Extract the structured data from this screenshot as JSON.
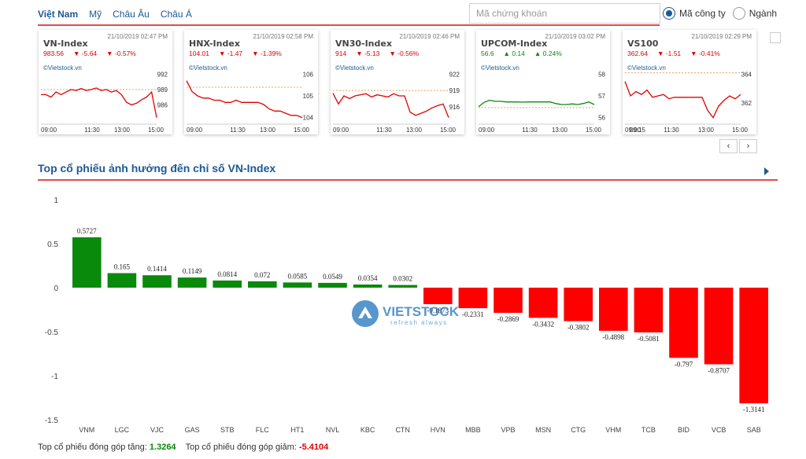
{
  "nav": {
    "tabs": [
      {
        "label": "Việt Nam",
        "active": true
      },
      {
        "label": "Mỹ",
        "active": false
      },
      {
        "label": "Châu Âu",
        "active": false
      },
      {
        "label": "Châu Á",
        "active": false
      }
    ]
  },
  "search": {
    "placeholder": "Mã chứng khoán"
  },
  "filter": {
    "option1": "Mã công ty",
    "option2": "Ngành"
  },
  "cards": [
    {
      "name": "VN-Index",
      "time": "21/10/2019 02:47 PM",
      "value": "983.56",
      "change": "▼ -5.64",
      "pct": "▼ -0.57%",
      "trend": "neg",
      "source": "©Vietstock.vn",
      "yticks": [
        "992",
        "989",
        "986"
      ],
      "xticks": [
        "09:00",
        "11:30",
        "13:00",
        "15:00"
      ],
      "ref": 989,
      "series": [
        988,
        988,
        987.5,
        988.5,
        988,
        988.5,
        989,
        988.8,
        989.2,
        988.8,
        989,
        989.3,
        988.8,
        989,
        988.5,
        988.8,
        988,
        986.5,
        986,
        986.3,
        987,
        987.5,
        988.5,
        983.5
      ]
    },
    {
      "name": "HNX-Index",
      "time": "21/10/2019 02:58 PM",
      "value": "104.01",
      "change": "▼ -1.47",
      "pct": "▼ -1.39%",
      "trend": "neg",
      "source": "©Vietstock.vn",
      "yticks": [
        "106",
        "105",
        "104"
      ],
      "xticks": [
        "09:00",
        "11:30",
        "13:00",
        "15:00"
      ],
      "ref": 105.4,
      "series": [
        105.7,
        105.2,
        105,
        104.9,
        104.9,
        104.8,
        104.8,
        104.7,
        104.7,
        104.8,
        104.7,
        104.7,
        104.7,
        104.7,
        104.6,
        104.4,
        104.3,
        104.3,
        104.2,
        104.1,
        104.1,
        104.0
      ]
    },
    {
      "name": "VN30-Index",
      "time": "21/10/2019 02:46 PM",
      "value": "914",
      "change": "▼ -5.13",
      "pct": "▼ -0.56%",
      "trend": "neg",
      "source": "©Vietstock.vn",
      "yticks": [
        "922",
        "919",
        "916"
      ],
      "xticks": [
        "09:00",
        "11:30",
        "13:00",
        "15:00"
      ],
      "ref": 919,
      "series": [
        918.5,
        916.5,
        918,
        917.5,
        918,
        918.2,
        918.4,
        917.8,
        918.2,
        918,
        917.8,
        918.4,
        918,
        918,
        915,
        914.4,
        914.8,
        915.2,
        915.8,
        916.2,
        916.5,
        914
      ]
    },
    {
      "name": "UPCOM-Index",
      "time": "21/10/2019 03:02 PM",
      "value": "56.6",
      "change": "▲ 0.14",
      "pct": "▲ 0.24%",
      "trend": "pos",
      "source": "©Vietstock.vn",
      "yticks": [
        "58",
        "57",
        "56"
      ],
      "xticks": [
        "09:00",
        "11:30",
        "13:00",
        "15:00"
      ],
      "ref": 56.46,
      "series": [
        56.5,
        56.7,
        56.8,
        56.75,
        56.75,
        56.72,
        56.72,
        56.72,
        56.71,
        56.72,
        56.72,
        56.72,
        56.72,
        56.72,
        56.65,
        56.6,
        56.6,
        56.63,
        56.6,
        56.65,
        56.72,
        56.6
      ]
    },
    {
      "name": "VS100",
      "time": "21/10/2019 02:29 PM",
      "value": "362.64",
      "change": "▼ -1.51",
      "pct": "▼ -0.41%",
      "trend": "neg",
      "source": "©Vietstock.vn",
      "yticks": [
        "364",
        "362"
      ],
      "xticks": [
        "09:00",
        "09:15",
        "11:30",
        "13:00",
        "15:00"
      ],
      "ref": 364.1,
      "series": [
        363.5,
        362.5,
        362.8,
        362.6,
        362.9,
        362.4,
        362.5,
        362.6,
        362.3,
        362.4,
        362.4,
        362.4,
        362.4,
        362.4,
        362.4,
        361.5,
        361,
        361.8,
        362.2,
        362.5,
        362.3,
        362.6
      ]
    }
  ],
  "pager": {
    "prev": "‹",
    "next": "›"
  },
  "section": {
    "title": "Top cổ phiếu ảnh hưởng đến chỉ số VN-Index"
  },
  "summary": {
    "up_label": "Top cổ phiếu đóng góp tăng:",
    "up_value": "1.3264",
    "down_label": "Top cổ phiếu đóng góp giảm:",
    "down_value": "-5.4104"
  },
  "watermark": {
    "text": "VIETSTOCK",
    "tagline": "refresh always"
  },
  "colors": {
    "positive": "#0a8a0a",
    "negative": "#ff0000",
    "accent": "#1b5a96",
    "rule": "#e54b4b"
  },
  "chart_data": {
    "type": "bar",
    "title": "",
    "xlabel": "",
    "ylabel": "",
    "ylim": [
      -1.5,
      1
    ],
    "yticks": [
      1,
      0.5,
      0,
      -0.5,
      -1,
      -1.5
    ],
    "grid": false,
    "categories": [
      "VNM",
      "LGC",
      "VJC",
      "GAS",
      "STB",
      "FLC",
      "HT1",
      "NVL",
      "KBC",
      "CTN",
      "HVN",
      "MBB",
      "VPB",
      "MSN",
      "CTG",
      "VHM",
      "TCB",
      "BID",
      "VCB",
      "SAB"
    ],
    "values": [
      0.5727,
      0.165,
      0.1414,
      0.1149,
      0.0814,
      0.072,
      0.0585,
      0.0549,
      0.0354,
      0.0302,
      -0.1873,
      -0.2331,
      -0.2869,
      -0.3432,
      -0.3802,
      -0.4898,
      -0.5081,
      -0.797,
      -0.8707,
      -1.3141
    ],
    "labels": [
      "0.5727",
      "0.165",
      "0.1414",
      "0.1149",
      "0.0814",
      "0.072",
      "0.0585",
      "0.0549",
      "0.0354",
      "0.0302",
      "-0.1873",
      "-0.2331",
      "-0.2869",
      "-0.3432",
      "-0.3802",
      "-0.4898",
      "-0.5081",
      "-0.797",
      "-0.8707",
      "-1.3141"
    ]
  }
}
